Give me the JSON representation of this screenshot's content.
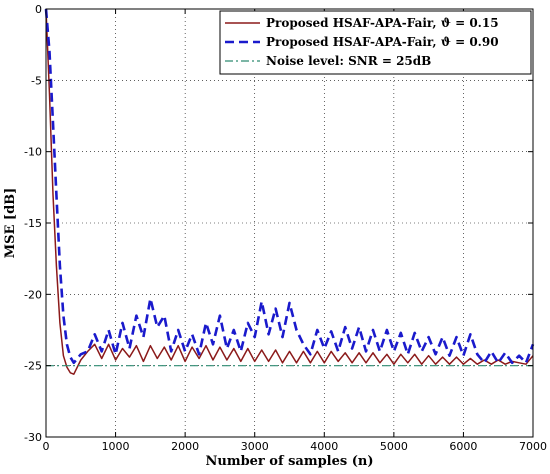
{
  "chart_data": {
    "type": "line",
    "title": "",
    "xlabel": "Number of samples (n)",
    "ylabel": "MSE [dB]",
    "xlim": [
      0,
      7000
    ],
    "ylim": [
      -30,
      0
    ],
    "xticks": [
      0,
      1000,
      2000,
      3000,
      4000,
      5000,
      6000,
      7000
    ],
    "yticks": [
      0,
      -5,
      -10,
      -15,
      -20,
      -25,
      -30
    ],
    "grid": true,
    "legend_position": "top-right",
    "series": [
      {
        "name": "Proposed HSAF-APA-Fair, ϑ = 0.15",
        "color": "#8b1a1a",
        "style": "solid",
        "x": [
          0,
          50,
          100,
          150,
          200,
          250,
          300,
          350,
          400,
          500,
          600,
          700,
          800,
          900,
          1000,
          1100,
          1200,
          1300,
          1400,
          1500,
          1600,
          1700,
          1800,
          1900,
          2000,
          2100,
          2200,
          2300,
          2400,
          2500,
          2600,
          2700,
          2800,
          2900,
          3000,
          3100,
          3200,
          3300,
          3400,
          3500,
          3600,
          3700,
          3800,
          3900,
          4000,
          4100,
          4200,
          4300,
          4400,
          4500,
          4600,
          4700,
          4800,
          4900,
          5000,
          5100,
          5200,
          5300,
          5400,
          5500,
          5600,
          5700,
          5800,
          5900,
          6000,
          6100,
          6200,
          6300,
          6400,
          6500,
          6600,
          6700,
          6800,
          6900,
          7000
        ],
        "y": [
          0,
          -6,
          -13,
          -18,
          -22,
          -24.3,
          -25.1,
          -25.5,
          -25.6,
          -24.6,
          -24.0,
          -23.5,
          -24.5,
          -23.5,
          -24.6,
          -23.8,
          -24.4,
          -23.6,
          -24.7,
          -23.6,
          -24.5,
          -23.7,
          -24.6,
          -23.6,
          -24.7,
          -23.7,
          -24.5,
          -23.6,
          -24.6,
          -23.7,
          -24.6,
          -23.8,
          -24.7,
          -23.8,
          -24.7,
          -23.9,
          -24.7,
          -23.9,
          -24.8,
          -24.0,
          -24.8,
          -24.0,
          -24.8,
          -24.0,
          -24.8,
          -24.0,
          -24.7,
          -24.1,
          -24.8,
          -24.1,
          -24.8,
          -24.1,
          -24.8,
          -24.2,
          -24.9,
          -24.2,
          -24.8,
          -24.2,
          -24.9,
          -24.3,
          -24.9,
          -24.4,
          -24.9,
          -24.4,
          -24.9,
          -24.5,
          -24.9,
          -24.6,
          -24.9,
          -24.6,
          -24.9,
          -24.7,
          -24.8,
          -24.9,
          -24.3
        ]
      },
      {
        "name": "Proposed HSAF-APA-Fair, ϑ = 0.90",
        "color": "#1a1acc",
        "style": "dashed",
        "x": [
          0,
          50,
          100,
          150,
          200,
          250,
          300,
          350,
          400,
          500,
          600,
          700,
          800,
          900,
          1000,
          1100,
          1200,
          1300,
          1400,
          1500,
          1600,
          1700,
          1800,
          1900,
          2000,
          2100,
          2200,
          2300,
          2400,
          2500,
          2600,
          2700,
          2800,
          2900,
          3000,
          3100,
          3200,
          3300,
          3400,
          3500,
          3600,
          3700,
          3800,
          3900,
          4000,
          4100,
          4200,
          4300,
          4400,
          4500,
          4600,
          4700,
          4800,
          4900,
          5000,
          5100,
          5200,
          5300,
          5400,
          5500,
          5600,
          5700,
          5800,
          5900,
          6000,
          6100,
          6200,
          6300,
          6400,
          6500,
          6600,
          6700,
          6800,
          6900,
          7000
        ],
        "y": [
          0,
          -3,
          -8,
          -13,
          -18,
          -21.5,
          -23.5,
          -24.4,
          -24.8,
          -24.2,
          -24.0,
          -22.8,
          -24.0,
          -22.5,
          -24.2,
          -22.0,
          -23.8,
          -21.5,
          -23.0,
          -20.3,
          -22.3,
          -21.5,
          -24.0,
          -22.5,
          -24.0,
          -22.8,
          -24.2,
          -22.0,
          -23.5,
          -21.5,
          -23.8,
          -22.5,
          -24.0,
          -22.0,
          -23.0,
          -20.5,
          -22.8,
          -21.0,
          -23.0,
          -20.6,
          -22.5,
          -23.5,
          -24.2,
          -22.5,
          -23.8,
          -22.6,
          -24.0,
          -22.3,
          -23.8,
          -22.3,
          -24.0,
          -22.5,
          -24.0,
          -22.5,
          -24.0,
          -22.7,
          -24.2,
          -22.7,
          -24.0,
          -23.0,
          -24.2,
          -23.0,
          -24.3,
          -23.0,
          -24.3,
          -22.8,
          -24.2,
          -24.8,
          -24.0,
          -24.8,
          -24.1,
          -24.8,
          -24.3,
          -24.8,
          -23.5
        ]
      },
      {
        "name": "Noise level: SNR = 25dB",
        "color": "#2e8b72",
        "style": "dashdot",
        "x": [
          0,
          7000
        ],
        "y": [
          -25,
          -25
        ]
      }
    ]
  }
}
